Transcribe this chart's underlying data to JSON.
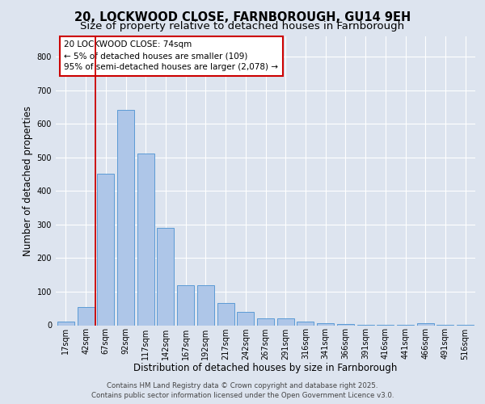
{
  "title_line1": "20, LOCKWOOD CLOSE, FARNBOROUGH, GU14 9EH",
  "title_line2": "Size of property relative to detached houses in Farnborough",
  "xlabel": "Distribution of detached houses by size in Farnborough",
  "ylabel": "Number of detached properties",
  "bar_labels": [
    "17sqm",
    "42sqm",
    "67sqm",
    "92sqm",
    "117sqm",
    "142sqm",
    "167sqm",
    "192sqm",
    "217sqm",
    "242sqm",
    "267sqm",
    "291sqm",
    "316sqm",
    "341sqm",
    "366sqm",
    "391sqm",
    "416sqm",
    "441sqm",
    "466sqm",
    "491sqm",
    "516sqm"
  ],
  "bar_values": [
    10,
    55,
    450,
    640,
    510,
    290,
    120,
    120,
    65,
    40,
    20,
    20,
    10,
    5,
    3,
    2,
    2,
    2,
    5,
    1,
    1
  ],
  "bar_color": "#aec6e8",
  "bar_edge_color": "#5b9bd5",
  "annotation_box_text": "20 LOCKWOOD CLOSE: 74sqm\n← 5% of detached houses are smaller (109)\n95% of semi-detached houses are larger (2,078) →",
  "vline_x": 1.5,
  "vline_color": "#cc0000",
  "ylim": [
    0,
    860
  ],
  "yticks": [
    0,
    100,
    200,
    300,
    400,
    500,
    600,
    700,
    800
  ],
  "background_color": "#dde4ef",
  "plot_background_color": "#dde4ef",
  "grid_color": "#ffffff",
  "footer_text": "Contains HM Land Registry data © Crown copyright and database right 2025.\nContains public sector information licensed under the Open Government Licence v3.0.",
  "title_fontsize": 10.5,
  "subtitle_fontsize": 9.5,
  "xlabel_fontsize": 8.5,
  "ylabel_fontsize": 8.5,
  "tick_fontsize": 7,
  "annotation_fontsize": 7.5,
  "footer_fontsize": 6.2
}
